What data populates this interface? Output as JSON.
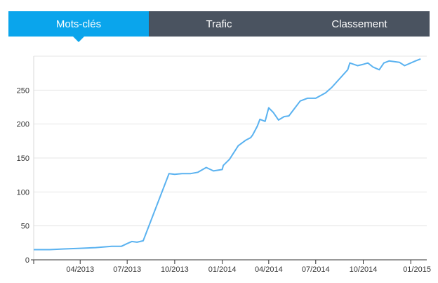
{
  "tabs": [
    {
      "label": "Mots-clés",
      "active": true
    },
    {
      "label": "Trafic",
      "active": false
    },
    {
      "label": "Classement",
      "active": false
    }
  ],
  "colors": {
    "accent": "#0aa5ec",
    "tab_bg": "#4a5360",
    "line": "#5ab2f0"
  },
  "chart_data": {
    "type": "line",
    "title": "",
    "xlabel": "",
    "ylabel": "",
    "ylim": [
      0,
      300
    ],
    "yticks": [
      0,
      50,
      100,
      150,
      200,
      250
    ],
    "xticks": [
      "04/2013",
      "07/2013",
      "10/2013",
      "01/2014",
      "04/2014",
      "07/2014",
      "10/2014",
      "01/2015"
    ],
    "grid": true,
    "series": [
      {
        "x": [
          "2013-01-01",
          "2013-02-01",
          "2013-03-01",
          "2013-04-01",
          "2013-05-01",
          "2013-06-01",
          "2013-06-20",
          "2013-07-01",
          "2013-07-10",
          "2013-07-20",
          "2013-08-01",
          "2013-09-20",
          "2013-10-01",
          "2013-10-15",
          "2013-11-01",
          "2013-11-15",
          "2013-12-01",
          "2013-12-15",
          "2014-01-01",
          "2014-01-03",
          "2014-01-15",
          "2014-02-01",
          "2014-02-15",
          "2014-02-25",
          "2014-03-01",
          "2014-03-10",
          "2014-03-15",
          "2014-03-25",
          "2014-04-01",
          "2014-04-10",
          "2014-04-20",
          "2014-05-01",
          "2014-05-10",
          "2014-05-20",
          "2014-06-01",
          "2014-06-15",
          "2014-07-01",
          "2014-07-20",
          "2014-08-01",
          "2014-09-01",
          "2014-09-05",
          "2014-09-20",
          "2014-10-01",
          "2014-10-10",
          "2014-10-20",
          "2014-11-01",
          "2014-11-10",
          "2014-11-20",
          "2014-12-10",
          "2014-12-20",
          "2015-01-10",
          "2015-01-20"
        ],
        "y": [
          15,
          15,
          16,
          17,
          18,
          20,
          20,
          24,
          27,
          26,
          28,
          127,
          126,
          127,
          127,
          129,
          136,
          131,
          133,
          139,
          148,
          168,
          176,
          180,
          184,
          197,
          207,
          204,
          224,
          217,
          206,
          211,
          212,
          222,
          234,
          238,
          238,
          246,
          254,
          280,
          290,
          286,
          288,
          290,
          284,
          280,
          290,
          293,
          291,
          286,
          293,
          296
        ]
      }
    ]
  }
}
